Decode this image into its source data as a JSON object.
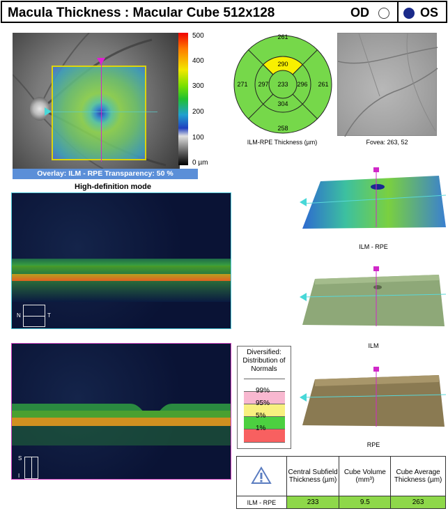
{
  "header": {
    "title": "Macula Thickness : Macular Cube 512x128",
    "eye_od": "OD",
    "eye_os": "OS",
    "selected_eye": "OS"
  },
  "fundus": {
    "colorbar_ticks": [
      "500",
      "400",
      "300",
      "200",
      "100",
      "0 µm"
    ],
    "overlay_label": "Overlay: ILM - RPE  Transparency: 50 %",
    "mode_label": "High-definition mode"
  },
  "bscan_orientation": {
    "top": {
      "left": "N",
      "right": "T"
    },
    "bottom": {
      "top": "S",
      "bottom": "I"
    }
  },
  "thickness_map": {
    "caption": "ILM-RPE Thickness (µm)",
    "values": {
      "outer_top": "261",
      "outer_left": "271",
      "outer_right": "261",
      "outer_bottom": "258",
      "inner_top": "290",
      "inner_left": "297",
      "inner_right": "296",
      "inner_bottom": "304",
      "center": "233"
    },
    "colors": {
      "normal": "#76d84a",
      "yellow": "#f8f000"
    }
  },
  "fovea": {
    "caption": "Fovea: 263, 52"
  },
  "renders": [
    {
      "caption": "ILM - RPE"
    },
    {
      "caption": "ILM"
    },
    {
      "caption": "RPE"
    }
  ],
  "legend": {
    "title": "Diversified: Distribution of Normals",
    "items": [
      {
        "label": "99%",
        "color": "#f8b8d0"
      },
      {
        "label": "95%",
        "color": "#f8f080"
      },
      {
        "label": "5%",
        "color": "#4cd040"
      },
      {
        "label": "1%",
        "color": "#f86060"
      }
    ],
    "top_color": "#ffffff"
  },
  "table": {
    "headers": [
      "Central Subfield Thickness (µm)",
      "Cube Volume (mm³)",
      "Cube Average Thickness (µm)"
    ],
    "row_label": "ILM - RPE",
    "values": [
      "233",
      "9.5",
      "263"
    ]
  }
}
